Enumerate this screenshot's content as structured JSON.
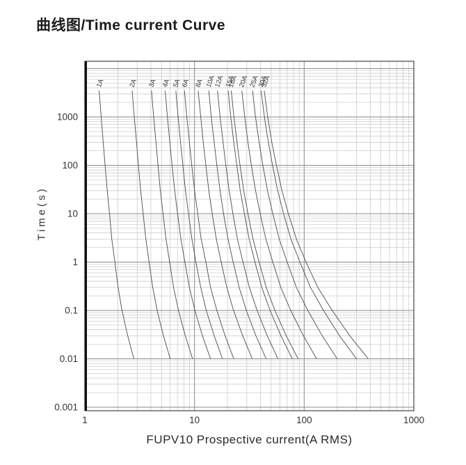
{
  "header": {
    "title": "曲线图/Time current Curve"
  },
  "colors": {
    "curve": "#4a4a4a",
    "grid_minor": "#c6c6c6",
    "grid_major": "#8a8a8a",
    "frame": "#444444",
    "axis_bar": "#101010",
    "text": "#333333"
  },
  "chart_data": {
    "type": "line",
    "title": "曲线图/Time current Curve",
    "xlabel": "FUPV10 Prospective current(A RMS)",
    "ylabel": "Time(s)",
    "x_scale": "log",
    "y_scale": "log",
    "xlim": [
      1,
      1000
    ],
    "ylim": [
      0.001,
      14000
    ],
    "x_ticks": [
      1,
      10,
      100,
      1000
    ],
    "y_ticks": [
      1000,
      100,
      10,
      1,
      0.1,
      0.01,
      0.001
    ],
    "grid": "log-log major and minor gridlines on",
    "legend_position": "labels rotated above each curve top",
    "series": [
      {
        "name": "1A",
        "points": [
          [
            1.35,
            3500
          ],
          [
            1.41,
            1000
          ],
          [
            1.47,
            300
          ],
          [
            1.53,
            100
          ],
          [
            1.6,
            30
          ],
          [
            1.68,
            10
          ],
          [
            1.76,
            3
          ],
          [
            1.88,
            1
          ],
          [
            2.01,
            0.3
          ],
          [
            2.18,
            0.1
          ],
          [
            2.46,
            0.03
          ],
          [
            2.8,
            0.01
          ]
        ]
      },
      {
        "name": "2A",
        "points": [
          [
            2.7,
            3500
          ],
          [
            2.82,
            1000
          ],
          [
            2.96,
            300
          ],
          [
            3.08,
            100
          ],
          [
            3.23,
            30
          ],
          [
            3.4,
            10
          ],
          [
            3.6,
            3
          ],
          [
            3.85,
            1
          ],
          [
            4.16,
            0.3
          ],
          [
            4.56,
            0.1
          ],
          [
            5.21,
            0.03
          ],
          [
            6.0,
            0.01
          ]
        ]
      },
      {
        "name": "3A",
        "points": [
          [
            4.05,
            3500
          ],
          [
            4.24,
            1000
          ],
          [
            4.45,
            300
          ],
          [
            4.65,
            100
          ],
          [
            4.88,
            30
          ],
          [
            5.16,
            10
          ],
          [
            5.5,
            3
          ],
          [
            5.93,
            1
          ],
          [
            6.44,
            0.3
          ],
          [
            7.14,
            0.1
          ],
          [
            8.24,
            0.03
          ],
          [
            9.6,
            0.01
          ]
        ]
      },
      {
        "name": "4A",
        "points": [
          [
            5.4,
            3500
          ],
          [
            5.66,
            1000
          ],
          [
            5.96,
            300
          ],
          [
            6.24,
            100
          ],
          [
            6.6,
            30
          ],
          [
            7.01,
            10
          ],
          [
            7.51,
            3
          ],
          [
            8.17,
            1
          ],
          [
            8.98,
            0.3
          ],
          [
            10.1,
            0.1
          ],
          [
            11.8,
            0.03
          ],
          [
            14,
            0.01
          ]
        ]
      },
      {
        "name": "5A",
        "points": [
          [
            6.75,
            3500
          ],
          [
            7.09,
            1000
          ],
          [
            7.46,
            300
          ],
          [
            7.83,
            100
          ],
          [
            8.28,
            30
          ],
          [
            8.81,
            10
          ],
          [
            9.47,
            3
          ],
          [
            10.3,
            1
          ],
          [
            11.4,
            0.3
          ],
          [
            12.8,
            0.1
          ],
          [
            15.1,
            0.03
          ],
          [
            18,
            0.01
          ]
        ]
      },
      {
        "name": "6A",
        "points": [
          [
            8.1,
            3500
          ],
          [
            8.51,
            1000
          ],
          [
            8.98,
            300
          ],
          [
            9.44,
            100
          ],
          [
            10,
            30
          ],
          [
            10.7,
            10
          ],
          [
            11.5,
            3
          ],
          [
            12.7,
            1
          ],
          [
            14,
            0.3
          ],
          [
            16,
            0.1
          ],
          [
            19,
            0.03
          ],
          [
            22.8,
            0.01
          ]
        ]
      },
      {
        "name": "8A",
        "points": [
          [
            10.8,
            3500
          ],
          [
            11.4,
            1000
          ],
          [
            12,
            300
          ],
          [
            12.7,
            100
          ],
          [
            13.5,
            30
          ],
          [
            14.5,
            10
          ],
          [
            15.8,
            3
          ],
          [
            17.5,
            1
          ],
          [
            19.7,
            0.3
          ],
          [
            22.7,
            0.1
          ],
          [
            27.5,
            0.03
          ],
          [
            33.6,
            0.01
          ]
        ]
      },
      {
        "name": "10A",
        "points": [
          [
            13.5,
            3500
          ],
          [
            14.2,
            1000
          ],
          [
            15.1,
            300
          ],
          [
            16,
            100
          ],
          [
            17.1,
            30
          ],
          [
            18.4,
            10
          ],
          [
            20.2,
            3
          ],
          [
            22.5,
            1
          ],
          [
            25.5,
            0.3
          ],
          [
            29.7,
            0.1
          ],
          [
            36.3,
            0.03
          ],
          [
            45,
            0.01
          ]
        ]
      },
      {
        "name": "12A",
        "points": [
          [
            16.2,
            3500
          ],
          [
            17.1,
            1000
          ],
          [
            18.2,
            300
          ],
          [
            19.3,
            100
          ],
          [
            20.7,
            30
          ],
          [
            22.4,
            10
          ],
          [
            24.6,
            3
          ],
          [
            27.7,
            1
          ],
          [
            31.6,
            0.3
          ],
          [
            37.2,
            0.1
          ],
          [
            46,
            0.03
          ],
          [
            57.6,
            0.01
          ]
        ]
      },
      {
        "name": "15A",
        "points": [
          [
            20.3,
            3500
          ],
          [
            21.4,
            1000
          ],
          [
            22.8,
            300
          ],
          [
            24.3,
            100
          ],
          [
            26.1,
            30
          ],
          [
            28.5,
            10
          ],
          [
            31.5,
            3
          ],
          [
            35.6,
            1
          ],
          [
            41.1,
            0.3
          ],
          [
            48.9,
            0.1
          ],
          [
            61.4,
            0.03
          ],
          [
            78,
            0.01
          ]
        ]
      },
      {
        "name": "16A",
        "points": [
          [
            21.6,
            3500
          ],
          [
            22.9,
            1000
          ],
          [
            24.4,
            300
          ],
          [
            26,
            100
          ],
          [
            28.1,
            30
          ],
          [
            30.7,
            10
          ],
          [
            34.1,
            3
          ],
          [
            38.8,
            1
          ],
          [
            45,
            0.3
          ],
          [
            54.1,
            0.1
          ],
          [
            68.6,
            0.03
          ],
          [
            88,
            0.01
          ]
        ]
      },
      {
        "name": "20A",
        "points": [
          [
            27,
            3500
          ],
          [
            28.7,
            1000
          ],
          [
            30.7,
            300
          ],
          [
            33,
            100
          ],
          [
            36,
            30
          ],
          [
            39.7,
            10
          ],
          [
            44.7,
            3
          ],
          [
            51.7,
            1
          ],
          [
            61.2,
            0.3
          ],
          [
            75.4,
            0.1
          ],
          [
            98.3,
            0.03
          ],
          [
            130,
            0.01
          ]
        ]
      },
      {
        "name": "25A",
        "points": [
          [
            33.8,
            3500
          ],
          [
            36,
            1000
          ],
          [
            38.8,
            300
          ],
          [
            42,
            100
          ],
          [
            46.3,
            30
          ],
          [
            51.7,
            10
          ],
          [
            59.2,
            3
          ],
          [
            70,
            1
          ],
          [
            84.9,
            0.3
          ],
          [
            108,
            0.1
          ],
          [
            146,
            0.03
          ],
          [
            200,
            0.01
          ]
        ]
      },
      {
        "name": "30A",
        "points": [
          [
            40.5,
            3500
          ],
          [
            43.4,
            1000
          ],
          [
            47.1,
            300
          ],
          [
            51.5,
            100
          ],
          [
            57.3,
            30
          ],
          [
            64.9,
            10
          ],
          [
            75.6,
            3
          ],
          [
            91.4,
            1
          ],
          [
            114,
            0.3
          ],
          [
            150,
            0.1
          ],
          [
            210,
            0.03
          ],
          [
            300,
            0.01
          ]
        ]
      },
      {
        "name": "32A",
        "points": [
          [
            43.2,
            3500
          ],
          [
            46.5,
            1000
          ],
          [
            50.7,
            300
          ],
          [
            55.8,
            100
          ],
          [
            62.7,
            30
          ],
          [
            71.8,
            10
          ],
          [
            84.9,
            3
          ],
          [
            104,
            1
          ],
          [
            133,
            0.3
          ],
          [
            180,
            0.1
          ],
          [
            260,
            0.03
          ],
          [
            384,
            0.01
          ]
        ]
      }
    ]
  }
}
